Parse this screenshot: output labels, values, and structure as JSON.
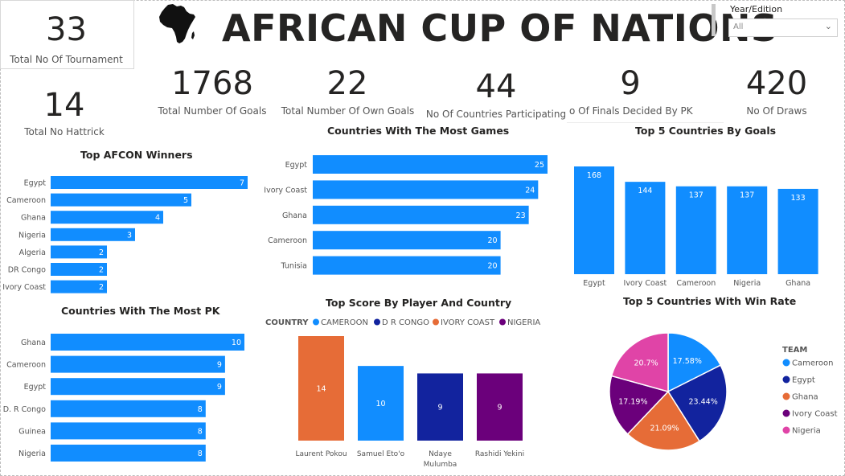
{
  "dashboard": {
    "title": "AFRICAN CUP OF NATIONS",
    "colors": {
      "bar": "#118DFF",
      "text": "#252423"
    }
  },
  "slicer": {
    "label": "Year/Edition",
    "value": "All"
  },
  "kpis": {
    "tournaments": {
      "value": "33",
      "label": "Total No Of Tournament"
    },
    "hattrick": {
      "value": "14",
      "label": "Total No Hattrick"
    },
    "goals": {
      "value": "1768",
      "label": "Total Number Of Goals"
    },
    "own_goals": {
      "value": "22",
      "label": "Total Number Of Own Goals"
    },
    "countries": {
      "value": "44",
      "label": "No Of Countries Participating"
    },
    "finals_pk": {
      "value": "9",
      "label": "o Of Finals Decided By PK"
    },
    "draws": {
      "value": "420",
      "label": "No Of Draws"
    }
  },
  "chart_data": [
    {
      "id": "winners",
      "type": "bar",
      "orientation": "horizontal",
      "title": "Top AFCON Winners",
      "categories": [
        "Egypt",
        "Cameroon",
        "Ghana",
        "Nigeria",
        "Algeria",
        "DR Congo",
        "Ivory Coast"
      ],
      "values": [
        7,
        5,
        4,
        3,
        2,
        2,
        2
      ],
      "xlim": [
        0,
        7
      ],
      "color": "#118DFF"
    },
    {
      "id": "games",
      "type": "bar",
      "orientation": "horizontal",
      "title": "Countries With The Most Games",
      "categories": [
        "Egypt",
        "Ivory Coast",
        "Ghana",
        "Cameroon",
        "Tunisia"
      ],
      "values": [
        25,
        24,
        23,
        20,
        20
      ],
      "xlim": [
        0,
        25
      ],
      "color": "#118DFF"
    },
    {
      "id": "goals",
      "type": "bar",
      "orientation": "vertical",
      "title": "Top 5 Countries By Goals",
      "categories": [
        "Egypt",
        "Ivory Coast",
        "Cameroon",
        "Nigeria",
        "Ghana"
      ],
      "values": [
        168,
        144,
        137,
        137,
        133
      ],
      "ylim": [
        0,
        168
      ],
      "color": "#118DFF"
    },
    {
      "id": "pk",
      "type": "bar",
      "orientation": "horizontal",
      "title": "Countries With The Most PK",
      "categories": [
        "Ghana",
        "Cameroon",
        "Egypt",
        "D. R Congo",
        "Guinea",
        "Nigeria"
      ],
      "values": [
        10,
        9,
        9,
        8,
        8,
        8
      ],
      "xlim": [
        0,
        10
      ],
      "color": "#118DFF"
    },
    {
      "id": "scorers",
      "type": "bar",
      "orientation": "vertical",
      "title": "Top Score By Player And Country",
      "legend_title": "COUNTRY",
      "legend": [
        {
          "name": "CAMEROON",
          "color": "#118DFF"
        },
        {
          "name": "D R CONGO",
          "color": "#12239E"
        },
        {
          "name": "IVORY COAST",
          "color": "#E66C37"
        },
        {
          "name": "NIGERIA",
          "color": "#6B007B"
        }
      ],
      "categories": [
        "Laurent Pokou",
        "Samuel Eto'o",
        "Ndaye Mulumba",
        "Rashidi Yekini"
      ],
      "values": [
        14,
        10,
        9,
        9
      ],
      "colors": [
        "#E66C37",
        "#118DFF",
        "#12239E",
        "#6B007B"
      ],
      "ylim": [
        0,
        14
      ]
    },
    {
      "id": "winrate",
      "type": "pie",
      "title": "Top 5 Countries With Win Rate",
      "legend_title": "TEAM",
      "slices": [
        {
          "name": "Cameroon",
          "value": 17.58,
          "label": "17.58%",
          "color": "#118DFF"
        },
        {
          "name": "Egypt",
          "value": 23.44,
          "label": "23.44%",
          "color": "#12239E"
        },
        {
          "name": "Ghana",
          "value": 21.09,
          "label": "21.09%",
          "color": "#E66C37"
        },
        {
          "name": "Ivory Coast",
          "value": 17.19,
          "label": "17.19%",
          "color": "#6B007B"
        },
        {
          "name": "Nigeria",
          "value": 20.7,
          "label": "20.7%",
          "color": "#E044A7"
        }
      ]
    }
  ]
}
